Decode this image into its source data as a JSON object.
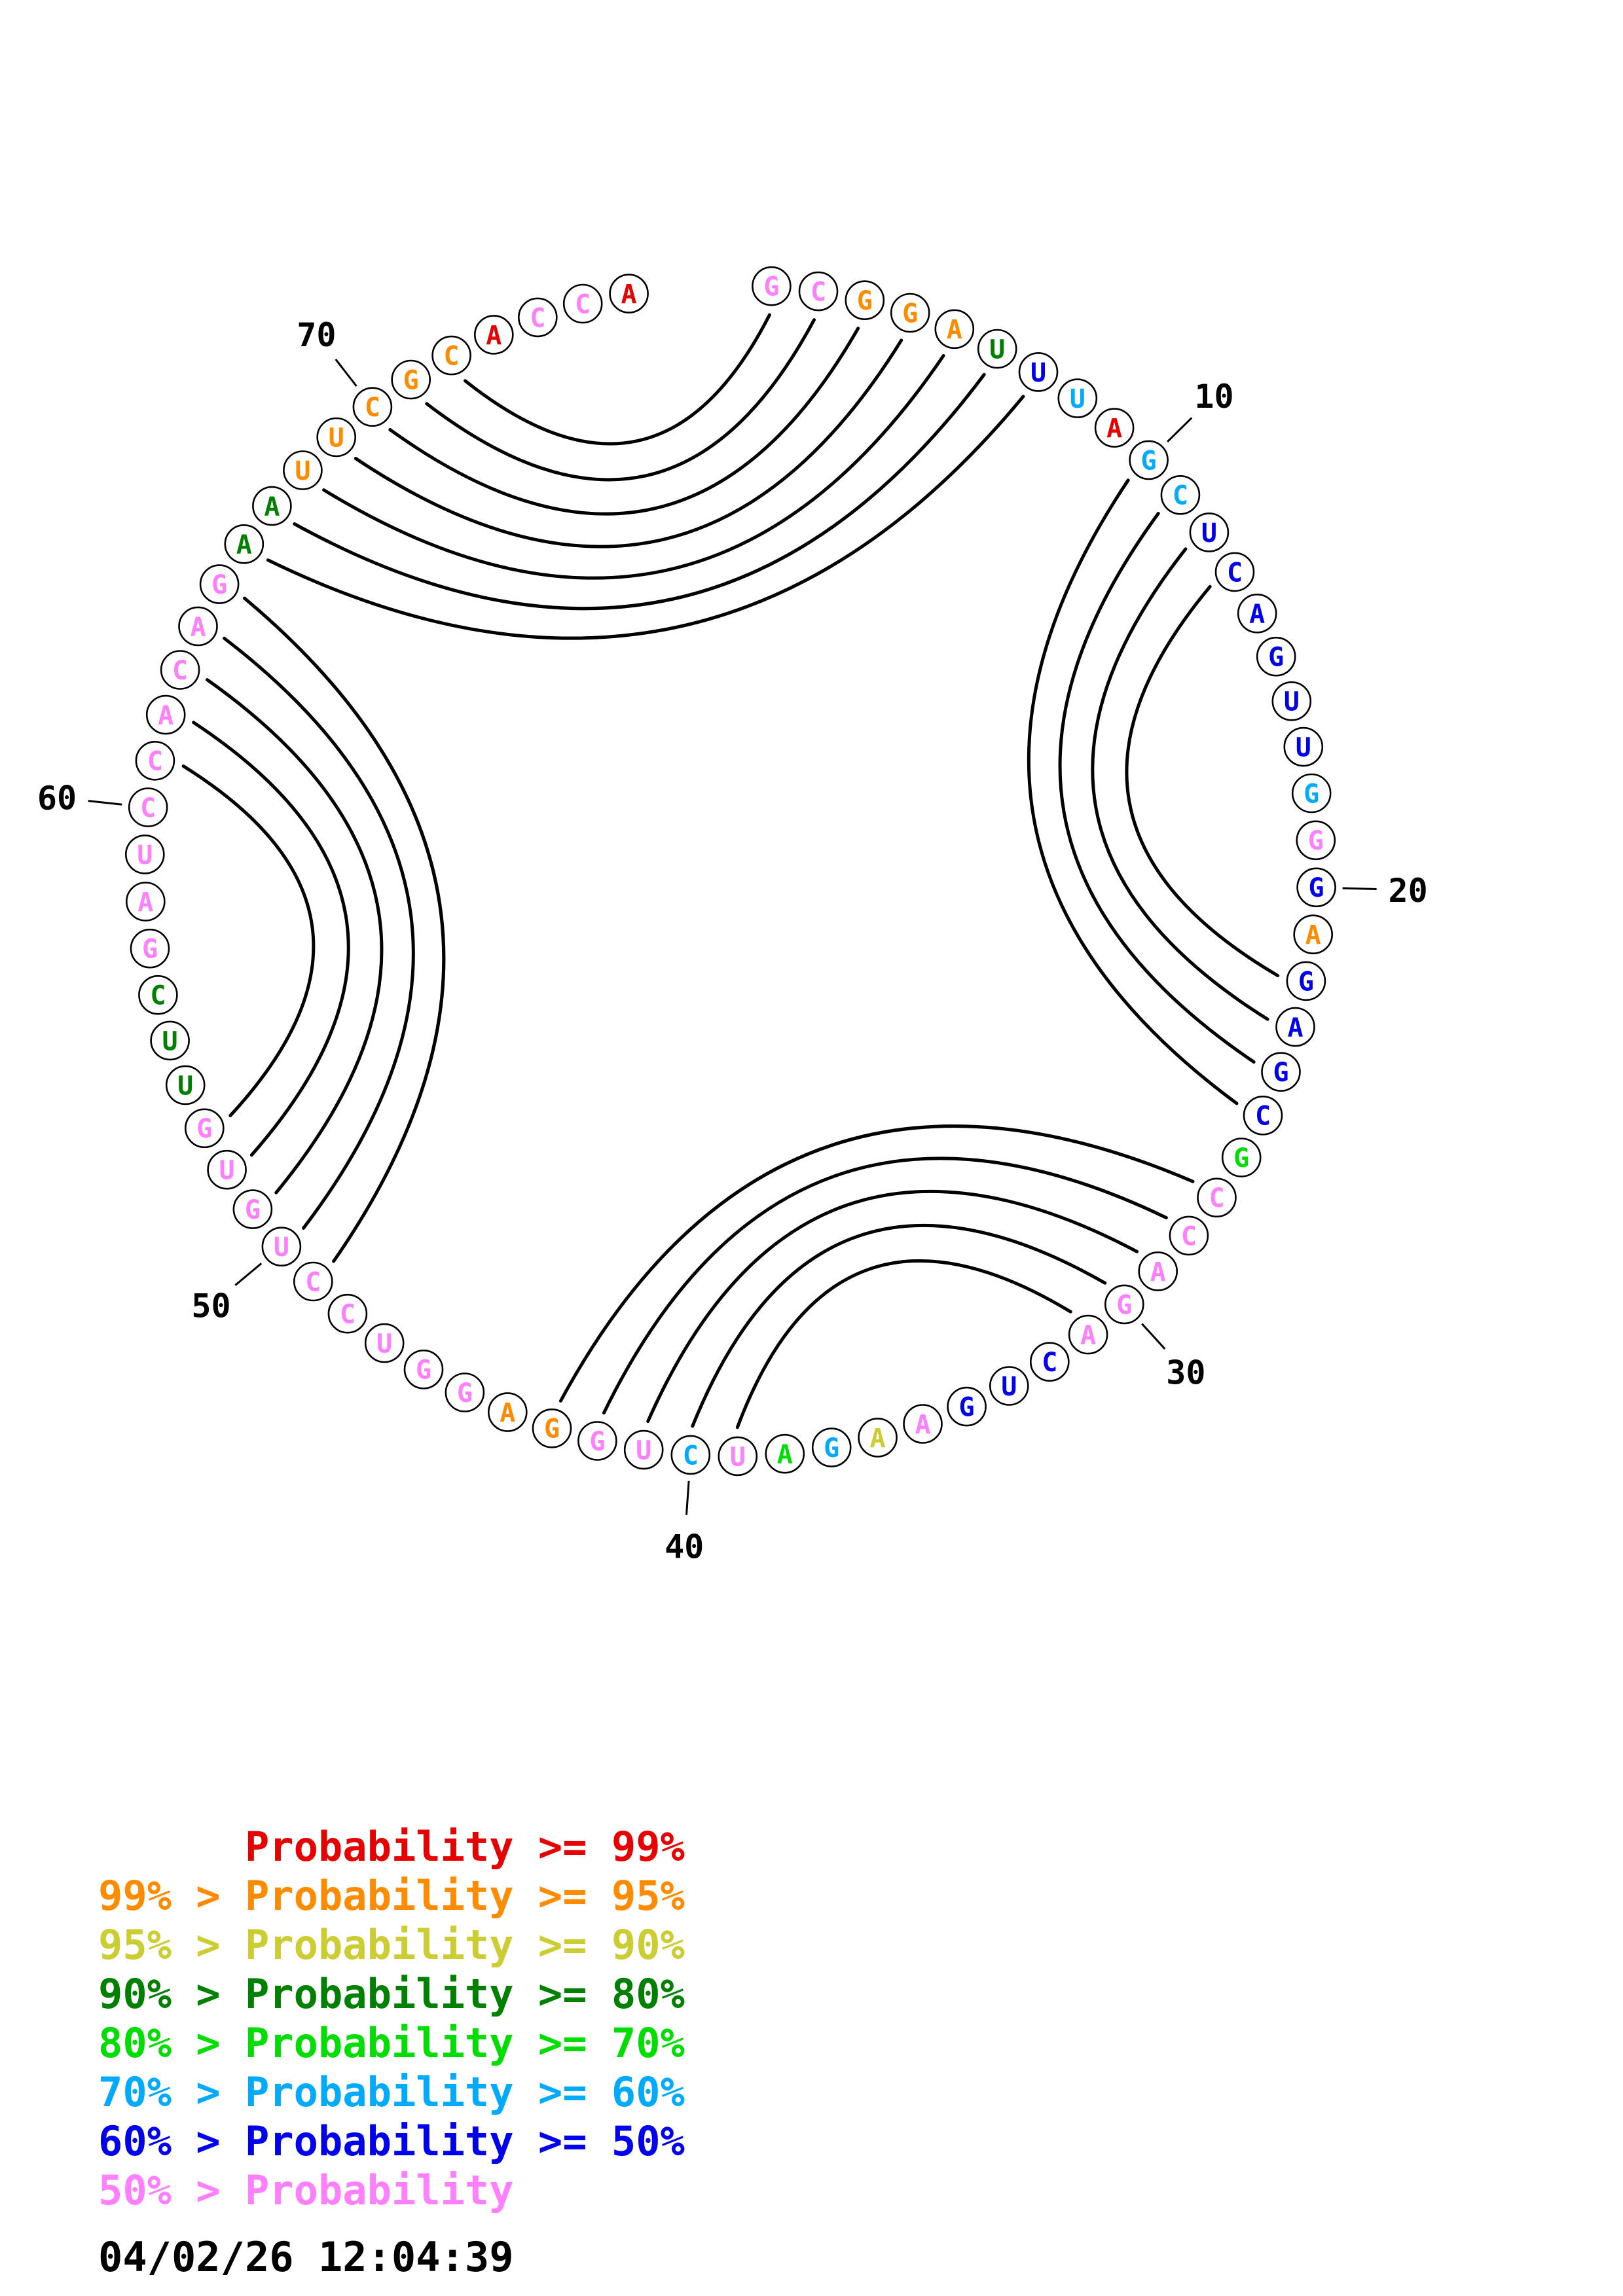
{
  "colors": {
    "p99": "#e60000",
    "p95": "#ff8c00",
    "p90": "#cccc33",
    "p80": "#008000",
    "p70": "#00dd00",
    "p60": "#00aaff",
    "p50": "#0000ee",
    "lt50": "#ff80ff"
  },
  "plot": {
    "sequence": "GCGGAUUUAGCUCAGUUGGGAGAGCGCCAGACUGAAGAUCUGGAGGUCCUGUGUUCGAUCCACAGAAUUCGCACCA",
    "classes": [
      "lt50",
      "lt50",
      "p95",
      "p95",
      "p95",
      "p80",
      "p50",
      "p60",
      "p99",
      "p60",
      "p60",
      "p50",
      "p50",
      "p50",
      "p50",
      "p50",
      "p50",
      "p60",
      "lt50",
      "p50",
      "p95",
      "p50",
      "p50",
      "p50",
      "p50",
      "p70",
      "lt50",
      "lt50",
      "lt50",
      "lt50",
      "lt50",
      "p50",
      "p50",
      "p50",
      "lt50",
      "p90",
      "p60",
      "p70",
      "lt50",
      "p60",
      "lt50",
      "lt50",
      "p95",
      "p95",
      "lt50",
      "lt50",
      "lt50",
      "lt50",
      "lt50",
      "lt50",
      "lt50",
      "lt50",
      "lt50",
      "p80",
      "p80",
      "p80",
      "lt50",
      "lt50",
      "lt50",
      "lt50",
      "lt50",
      "lt50",
      "lt50",
      "lt50",
      "lt50",
      "p80",
      "p80",
      "p95",
      "p95",
      "p95",
      "p95",
      "p95",
      "p99",
      "lt50",
      "lt50",
      "p99"
    ],
    "pairs": [
      [
        1,
        72
      ],
      [
        2,
        71
      ],
      [
        3,
        70
      ],
      [
        4,
        69
      ],
      [
        5,
        68
      ],
      [
        6,
        67
      ],
      [
        7,
        66
      ],
      [
        10,
        25
      ],
      [
        11,
        24
      ],
      [
        12,
        23
      ],
      [
        13,
        22
      ],
      [
        27,
        43
      ],
      [
        28,
        42
      ],
      [
        29,
        41
      ],
      [
        30,
        40
      ],
      [
        31,
        39
      ],
      [
        49,
        65
      ],
      [
        50,
        64
      ],
      [
        51,
        63
      ],
      [
        52,
        62
      ],
      [
        53,
        61
      ]
    ],
    "position_labels": [
      10,
      20,
      30,
      40,
      50,
      60,
      70
    ],
    "arc_color": "#000000",
    "circle_outline_color": "#000000"
  },
  "legend": {
    "rows": [
      {
        "text": "      Probability >= 99%",
        "cls": "p99"
      },
      {
        "text": "99% > Probability >= 95%",
        "cls": "p95"
      },
      {
        "text": "95% > Probability >= 90%",
        "cls": "p90"
      },
      {
        "text": "90% > Probability >= 80%",
        "cls": "p80"
      },
      {
        "text": "80% > Probability >= 70%",
        "cls": "p70"
      },
      {
        "text": "70% > Probability >= 60%",
        "cls": "p60"
      },
      {
        "text": "60% > Probability >= 50%",
        "cls": "p50"
      },
      {
        "text": "50% > Probability",
        "cls": "lt50"
      }
    ]
  },
  "timestamp": "04/02/26 12:04:39"
}
